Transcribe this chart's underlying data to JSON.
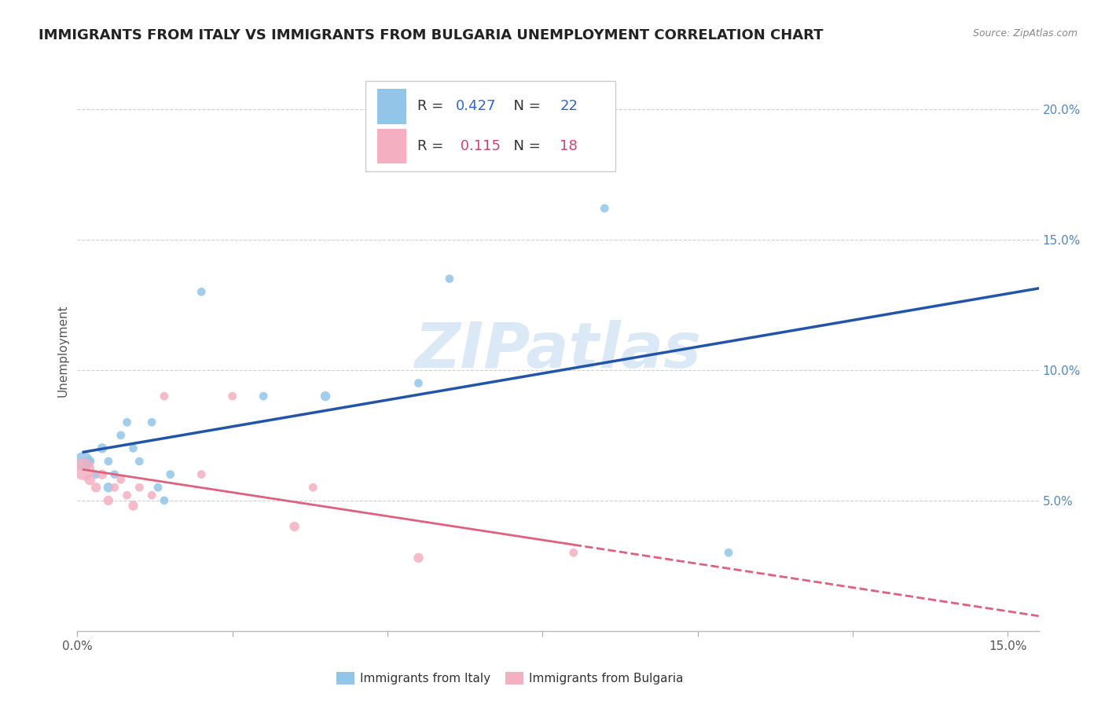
{
  "title": "IMMIGRANTS FROM ITALY VS IMMIGRANTS FROM BULGARIA UNEMPLOYMENT CORRELATION CHART",
  "source": "Source: ZipAtlas.com",
  "ylabel": "Unemployment",
  "xlim": [
    0.0,
    0.155
  ],
  "ylim": [
    0.0,
    0.215
  ],
  "yticks": [
    0.05,
    0.1,
    0.15,
    0.2
  ],
  "ytick_labels": [
    "5.0%",
    "10.0%",
    "15.0%",
    "20.0%"
  ],
  "xtick_positions": [
    0.0,
    0.025,
    0.05,
    0.075,
    0.1,
    0.125,
    0.15
  ],
  "xtick_labels": [
    "0.0%",
    "",
    "",
    "",
    "",
    "",
    "15.0%"
  ],
  "italy_color": "#92c5e8",
  "bulgaria_color": "#f4afc0",
  "italy_line_color": "#2255aa",
  "bulgaria_line_color": "#e06080",
  "italy_R": 0.427,
  "italy_N": 22,
  "bulgaria_R": 0.115,
  "bulgaria_N": 18,
  "background_color": "#ffffff",
  "grid_color": "#d0d0d0",
  "italy_x": [
    0.001,
    0.002,
    0.003,
    0.004,
    0.005,
    0.005,
    0.006,
    0.007,
    0.008,
    0.009,
    0.01,
    0.012,
    0.013,
    0.014,
    0.015,
    0.02,
    0.03,
    0.04,
    0.055,
    0.06,
    0.085,
    0.105
  ],
  "italy_y": [
    0.065,
    0.065,
    0.06,
    0.07,
    0.065,
    0.055,
    0.06,
    0.075,
    0.08,
    0.07,
    0.065,
    0.08,
    0.055,
    0.05,
    0.06,
    0.13,
    0.09,
    0.09,
    0.095,
    0.135,
    0.162,
    0.03
  ],
  "italy_sizes": [
    300,
    80,
    60,
    80,
    60,
    80,
    60,
    60,
    60,
    60,
    60,
    60,
    60,
    60,
    60,
    60,
    60,
    80,
    60,
    60,
    60,
    60
  ],
  "bulgaria_x": [
    0.001,
    0.002,
    0.003,
    0.004,
    0.005,
    0.006,
    0.007,
    0.008,
    0.009,
    0.01,
    0.012,
    0.014,
    0.02,
    0.025,
    0.035,
    0.038,
    0.055,
    0.08
  ],
  "bulgaria_y": [
    0.062,
    0.058,
    0.055,
    0.06,
    0.05,
    0.055,
    0.058,
    0.052,
    0.048,
    0.055,
    0.052,
    0.09,
    0.06,
    0.09,
    0.04,
    0.055,
    0.028,
    0.03
  ],
  "bulgaria_sizes": [
    400,
    100,
    80,
    80,
    80,
    60,
    60,
    60,
    80,
    60,
    60,
    60,
    60,
    60,
    80,
    60,
    80,
    60
  ],
  "watermark": "ZIPatlas",
  "title_fontsize": 13,
  "axis_label_fontsize": 11,
  "tick_fontsize": 11,
  "tick_color_y": "#5588bb",
  "tick_color_x": "#555555",
  "title_color": "#222222",
  "source_color": "#888888",
  "legend_R_color_italy": "#3366cc",
  "legend_R_color_bulgaria": "#cc4477",
  "legend_N_color": "#333333"
}
